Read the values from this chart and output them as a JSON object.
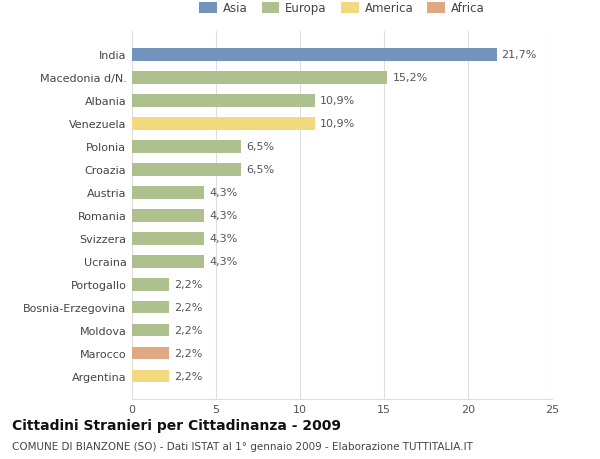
{
  "categories": [
    "India",
    "Macedonia d/N.",
    "Albania",
    "Venezuela",
    "Polonia",
    "Croazia",
    "Austria",
    "Romania",
    "Svizzera",
    "Ucraina",
    "Portogallo",
    "Bosnia-Erzegovina",
    "Moldova",
    "Marocco",
    "Argentina"
  ],
  "values": [
    21.7,
    15.2,
    10.9,
    10.9,
    6.5,
    6.5,
    4.3,
    4.3,
    4.3,
    4.3,
    2.2,
    2.2,
    2.2,
    2.2,
    2.2
  ],
  "labels": [
    "21,7%",
    "15,2%",
    "10,9%",
    "10,9%",
    "6,5%",
    "6,5%",
    "4,3%",
    "4,3%",
    "4,3%",
    "4,3%",
    "2,2%",
    "2,2%",
    "2,2%",
    "2,2%",
    "2,2%"
  ],
  "colors": [
    "#7193bc",
    "#adc08e",
    "#adc08e",
    "#f2d97e",
    "#adc08e",
    "#adc08e",
    "#adc08e",
    "#adc08e",
    "#adc08e",
    "#adc08e",
    "#adc08e",
    "#adc08e",
    "#adc08e",
    "#e0a882",
    "#f2d97e"
  ],
  "legend_labels": [
    "Asia",
    "Europa",
    "America",
    "Africa"
  ],
  "legend_colors": [
    "#7193bc",
    "#adc08e",
    "#f2d97e",
    "#e0a882"
  ],
  "xlim": [
    0,
    25
  ],
  "xticks": [
    0,
    5,
    10,
    15,
    20,
    25
  ],
  "title": "Cittadini Stranieri per Cittadinanza - 2009",
  "subtitle": "COMUNE DI BIANZONE (SO) - Dati ISTAT al 1° gennaio 2009 - Elaborazione TUTTITALIA.IT",
  "bg_color": "#ffffff",
  "grid_color": "#dddddd",
  "bar_height": 0.55,
  "label_fontsize": 8,
  "tick_fontsize": 8,
  "title_fontsize": 10,
  "subtitle_fontsize": 7.5
}
